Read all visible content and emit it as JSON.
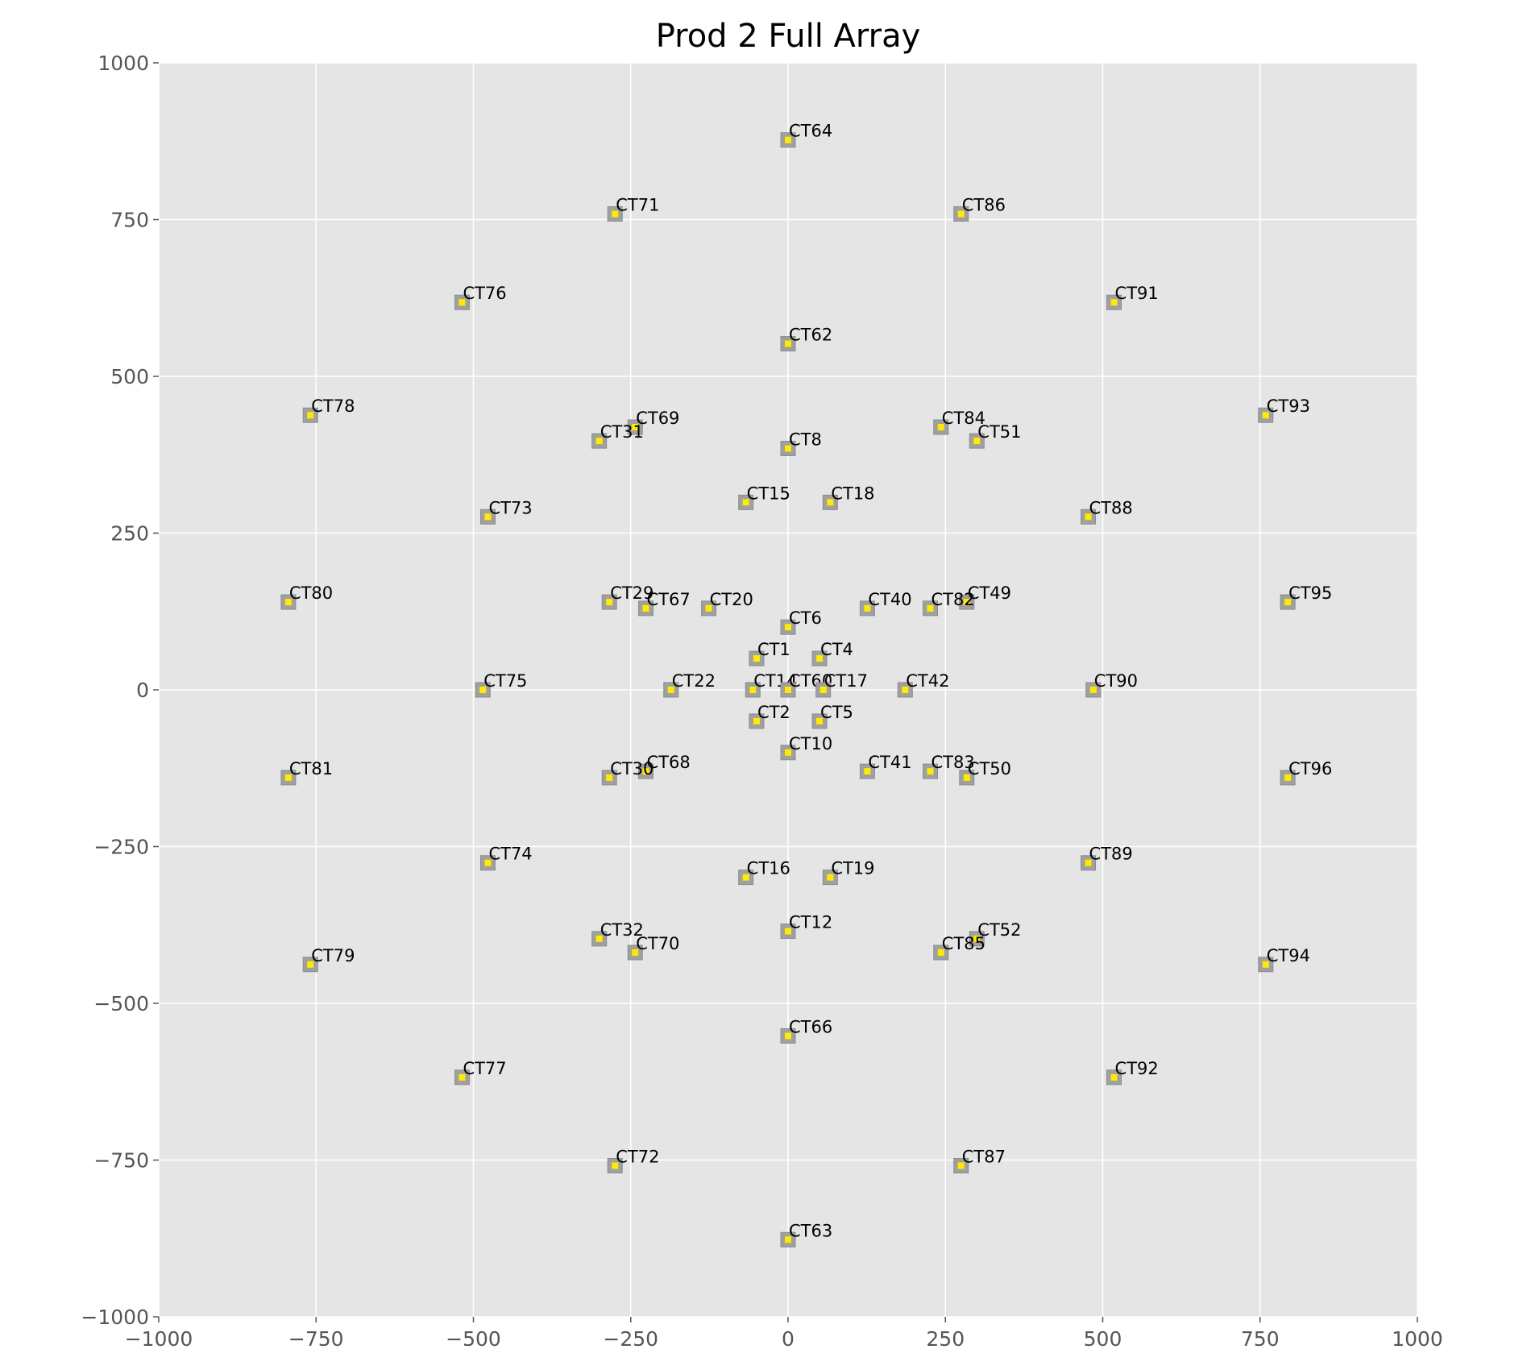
{
  "chart_data": {
    "type": "scatter",
    "title": "Prod 2 Full Array",
    "xlabel": "",
    "ylabel": "",
    "xlim": [
      -1000,
      1000
    ],
    "ylim": [
      -1000,
      1000
    ],
    "xticks": [
      -1000,
      -750,
      -500,
      -250,
      0,
      250,
      500,
      750,
      1000
    ],
    "yticks": [
      -1000,
      -750,
      -500,
      -250,
      0,
      250,
      500,
      750,
      1000
    ],
    "xtick_labels": [
      "−1000",
      "−750",
      "−500",
      "−250",
      "0",
      "250",
      "500",
      "750",
      "1000"
    ],
    "ytick_labels": [
      "−1000",
      "−750",
      "−500",
      "−250",
      "0",
      "250",
      "500",
      "750",
      "1000"
    ],
    "grid": true,
    "background": "#e5e5e5",
    "marker_colors": {
      "outer": "#a0a0a0",
      "inner": "#ffea00"
    },
    "points": [
      {
        "label": "CT64",
        "x": 0,
        "y": 877
      },
      {
        "label": "CT71",
        "x": -275,
        "y": 759
      },
      {
        "label": "CT86",
        "x": 275,
        "y": 759
      },
      {
        "label": "CT76",
        "x": -518,
        "y": 618
      },
      {
        "label": "CT91",
        "x": 518,
        "y": 618
      },
      {
        "label": "CT62",
        "x": 0,
        "y": 552
      },
      {
        "label": "CT78",
        "x": -759,
        "y": 438
      },
      {
        "label": "CT93",
        "x": 759,
        "y": 438
      },
      {
        "label": "CT69",
        "x": -243,
        "y": 419
      },
      {
        "label": "CT84",
        "x": 243,
        "y": 419
      },
      {
        "label": "CT31",
        "x": -300,
        "y": 397
      },
      {
        "label": "CT51",
        "x": 300,
        "y": 397
      },
      {
        "label": "CT8",
        "x": 0,
        "y": 385
      },
      {
        "label": "CT15",
        "x": -67,
        "y": 299
      },
      {
        "label": "CT18",
        "x": 67,
        "y": 299
      },
      {
        "label": "CT73",
        "x": -477,
        "y": 276
      },
      {
        "label": "CT88",
        "x": 477,
        "y": 276
      },
      {
        "label": "CT80",
        "x": -794,
        "y": 140
      },
      {
        "label": "CT95",
        "x": 794,
        "y": 140
      },
      {
        "label": "CT29",
        "x": -284,
        "y": 140
      },
      {
        "label": "CT49",
        "x": 284,
        "y": 140
      },
      {
        "label": "CT67",
        "x": -226,
        "y": 130
      },
      {
        "label": "CT20",
        "x": -126,
        "y": 130
      },
      {
        "label": "CT40",
        "x": 126,
        "y": 130
      },
      {
        "label": "CT82",
        "x": 226,
        "y": 130
      },
      {
        "label": "CT6",
        "x": 0,
        "y": 100
      },
      {
        "label": "CT1",
        "x": -50,
        "y": 50
      },
      {
        "label": "CT4",
        "x": 50,
        "y": 50
      },
      {
        "label": "CT75",
        "x": -485,
        "y": 0
      },
      {
        "label": "CT22",
        "x": -186,
        "y": 0
      },
      {
        "label": "CT14",
        "x": -56,
        "y": 0
      },
      {
        "label": "CT60",
        "x": 0,
        "y": 0
      },
      {
        "label": "CT17",
        "x": 56,
        "y": 0
      },
      {
        "label": "CT42",
        "x": 186,
        "y": 0
      },
      {
        "label": "CT90",
        "x": 485,
        "y": 0
      },
      {
        "label": "CT2",
        "x": -50,
        "y": -50
      },
      {
        "label": "CT5",
        "x": 50,
        "y": -50
      },
      {
        "label": "CT10",
        "x": 0,
        "y": -100
      },
      {
        "label": "CT68",
        "x": -226,
        "y": -130
      },
      {
        "label": "CT41",
        "x": 126,
        "y": -130
      },
      {
        "label": "CT83",
        "x": 226,
        "y": -130
      },
      {
        "label": "CT81",
        "x": -794,
        "y": -140
      },
      {
        "label": "CT30",
        "x": -284,
        "y": -140
      },
      {
        "label": "CT50",
        "x": 284,
        "y": -140
      },
      {
        "label": "CT96",
        "x": 794,
        "y": -140
      },
      {
        "label": "CT74",
        "x": -477,
        "y": -276
      },
      {
        "label": "CT89",
        "x": 477,
        "y": -276
      },
      {
        "label": "CT16",
        "x": -67,
        "y": -299
      },
      {
        "label": "CT19",
        "x": 67,
        "y": -299
      },
      {
        "label": "CT12",
        "x": 0,
        "y": -385
      },
      {
        "label": "CT32",
        "x": -300,
        "y": -397
      },
      {
        "label": "CT52",
        "x": 300,
        "y": -397
      },
      {
        "label": "CT70",
        "x": -243,
        "y": -419
      },
      {
        "label": "CT85",
        "x": 243,
        "y": -419
      },
      {
        "label": "CT79",
        "x": -759,
        "y": -438
      },
      {
        "label": "CT94",
        "x": 759,
        "y": -438
      },
      {
        "label": "CT66",
        "x": 0,
        "y": -552
      },
      {
        "label": "CT77",
        "x": -518,
        "y": -618
      },
      {
        "label": "CT92",
        "x": 518,
        "y": -618
      },
      {
        "label": "CT72",
        "x": -275,
        "y": -759
      },
      {
        "label": "CT87",
        "x": 275,
        "y": -759
      },
      {
        "label": "CT63",
        "x": 0,
        "y": -877
      }
    ]
  }
}
